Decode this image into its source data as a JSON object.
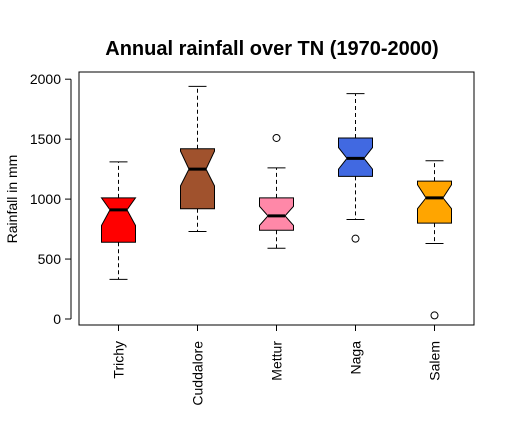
{
  "chart_data": {
    "type": "boxplot",
    "title": "Annual rainfall over TN (1970-2000)",
    "xlabel": "",
    "ylabel": "Rainfall in mm",
    "ylim": [
      -50,
      2060
    ],
    "yticks": [
      0,
      500,
      1000,
      1500,
      2000
    ],
    "notched": true,
    "grid": false,
    "legend": "none",
    "categories": [
      "Trichy",
      "Cuddalore",
      "Mettur",
      "Naga",
      "Salem"
    ],
    "colors": [
      "#ff0000",
      "#a0522d",
      "#ff88a8",
      "#4169e1",
      "#ffa500"
    ],
    "boxes": [
      {
        "name": "Trichy",
        "whisker_low": 330,
        "q1": 640,
        "median": 910,
        "q3": 1010,
        "whisker_high": 1310,
        "notch_low": 780,
        "notch_high": 1040,
        "outliers": []
      },
      {
        "name": "Cuddalore",
        "whisker_low": 730,
        "q1": 920,
        "median": 1250,
        "q3": 1420,
        "whisker_high": 1940,
        "notch_low": 1110,
        "notch_high": 1400,
        "outliers": []
      },
      {
        "name": "Mettur",
        "whisker_low": 590,
        "q1": 740,
        "median": 860,
        "q3": 1010,
        "whisker_high": 1260,
        "notch_low": 780,
        "notch_high": 940,
        "outliers": [
          1510
        ]
      },
      {
        "name": "Naga",
        "whisker_low": 830,
        "q1": 1190,
        "median": 1340,
        "q3": 1510,
        "whisker_high": 1880,
        "notch_low": 1250,
        "notch_high": 1430,
        "outliers": [
          670
        ]
      },
      {
        "name": "Salem",
        "whisker_low": 630,
        "q1": 800,
        "median": 1010,
        "q3": 1150,
        "whisker_high": 1320,
        "notch_low": 920,
        "notch_high": 1120,
        "outliers": [
          30
        ]
      }
    ]
  }
}
